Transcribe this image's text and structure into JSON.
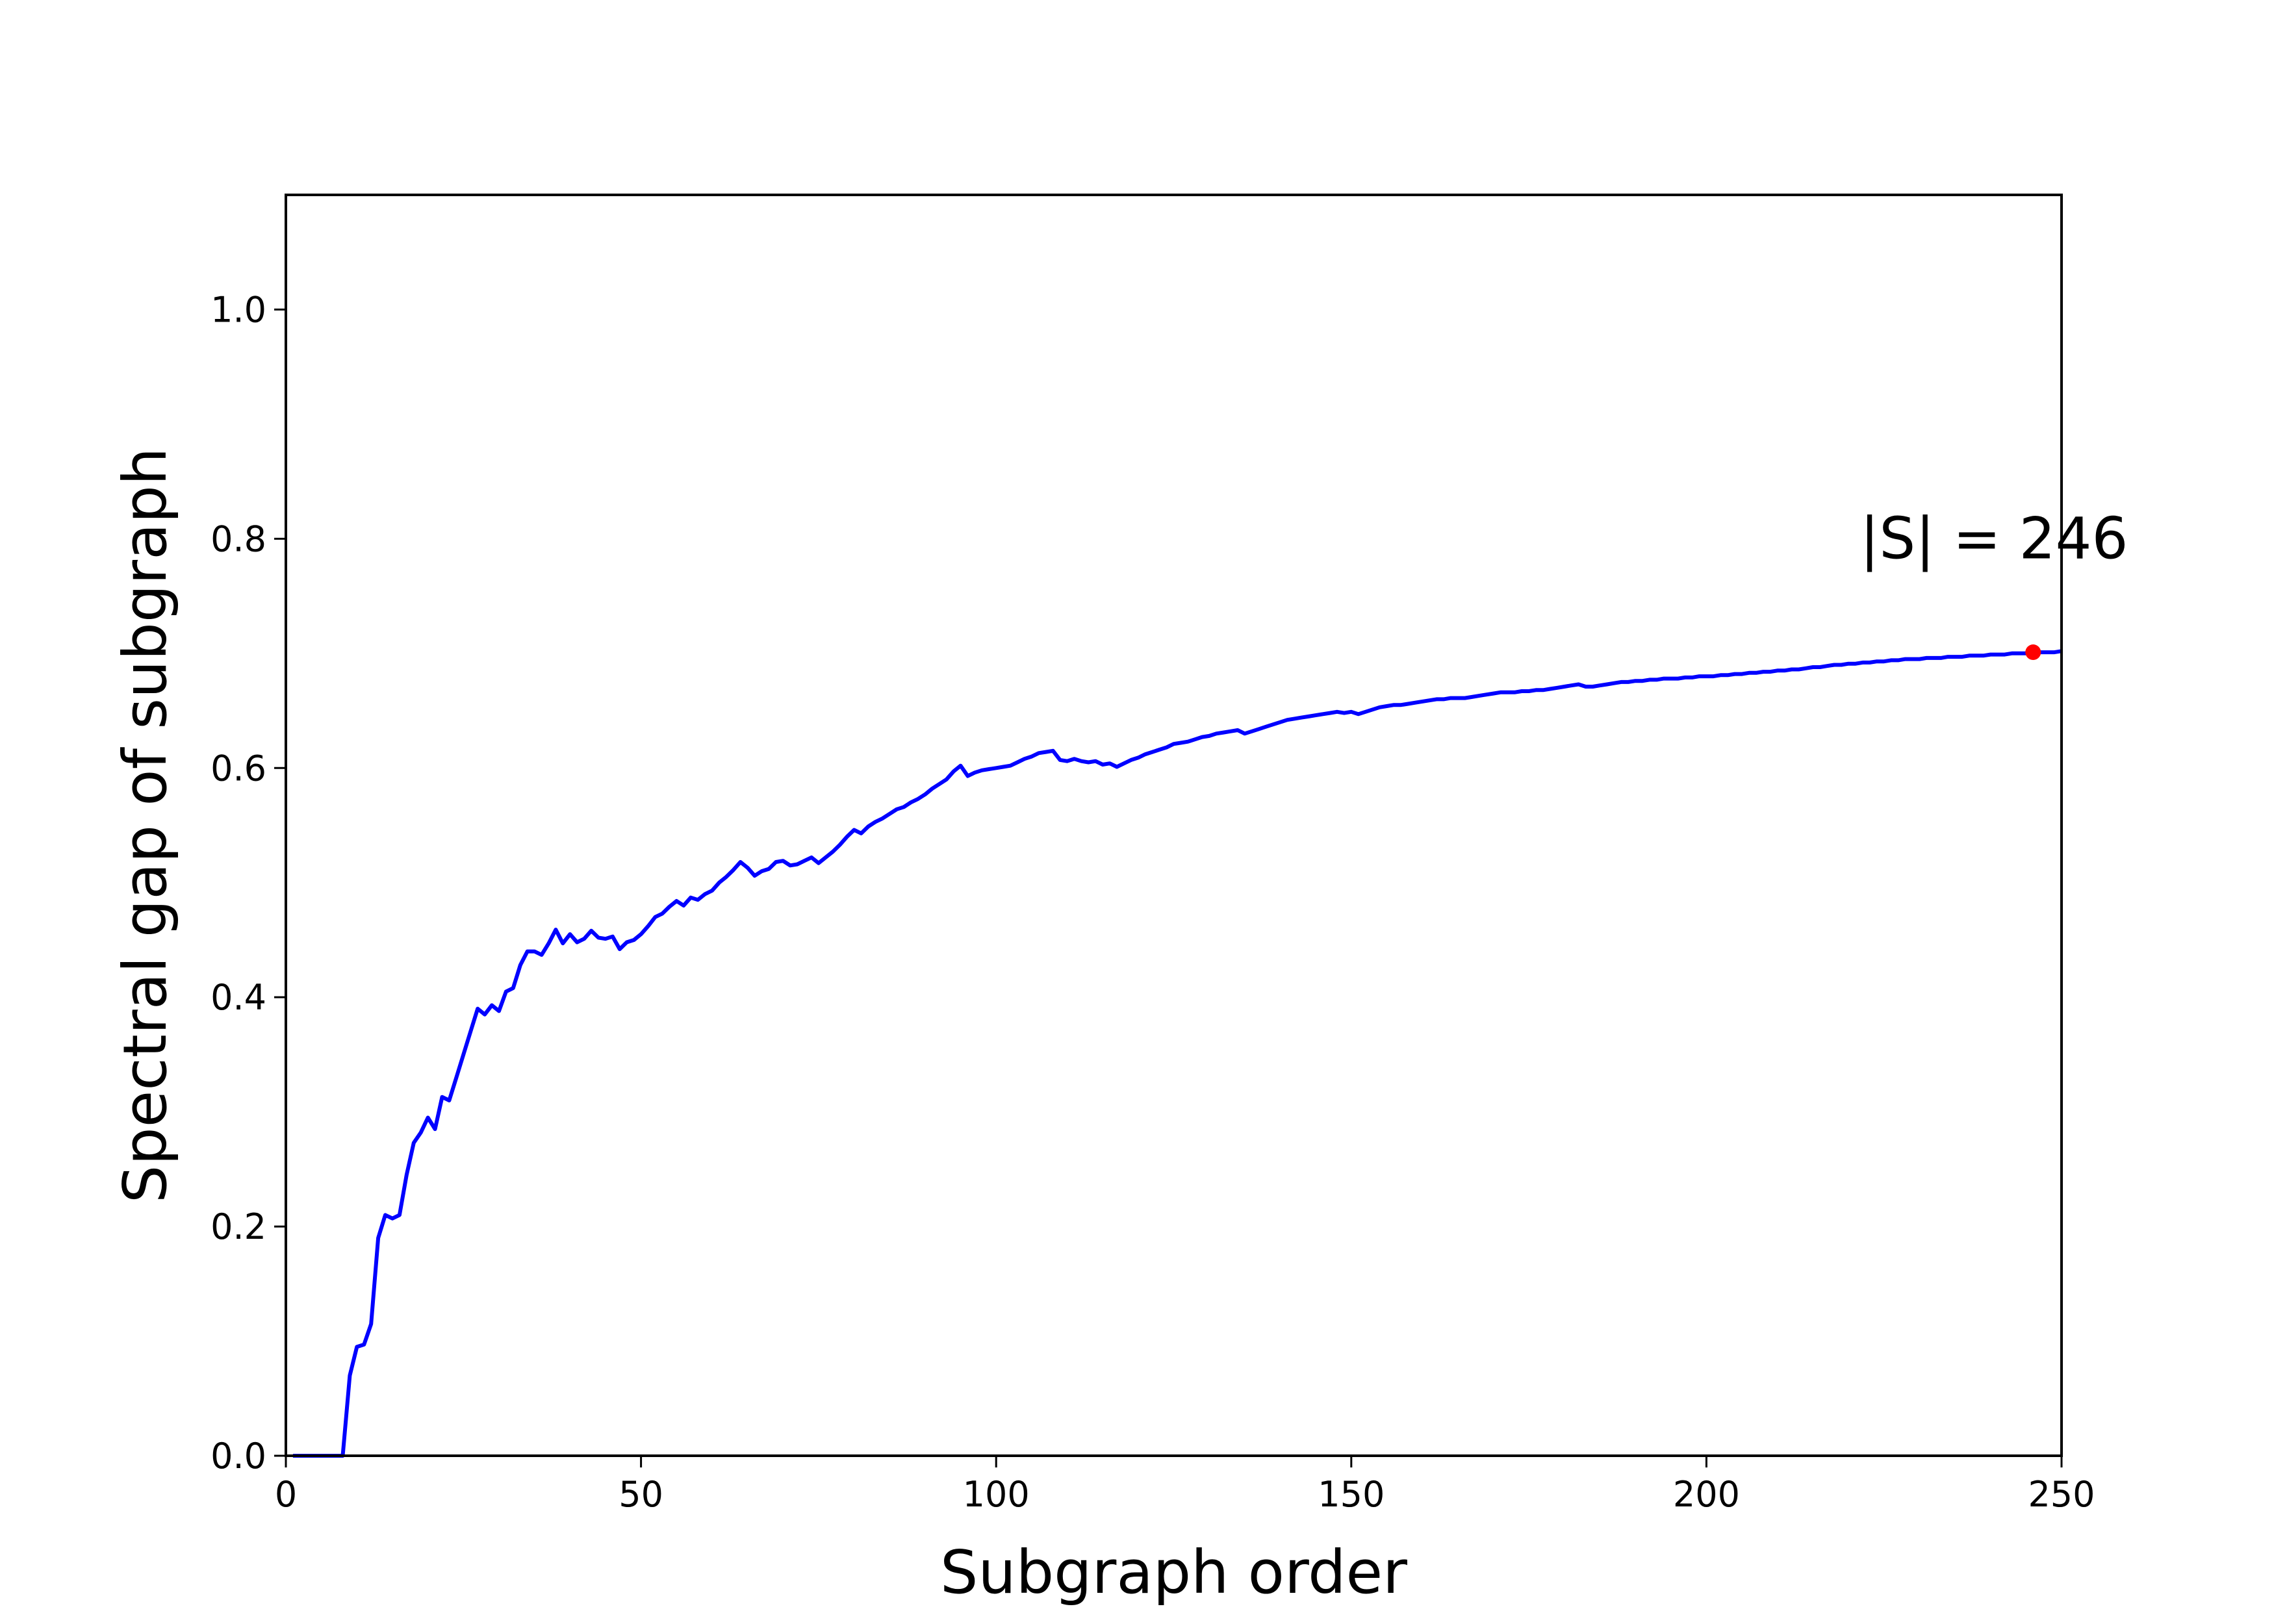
{
  "chart_data": {
    "type": "line",
    "title": "",
    "xlabel": "Subgraph order",
    "ylabel": "Spectral gap of subgraph",
    "xlim": [
      0,
      250
    ],
    "ylim": [
      0,
      1.1
    ],
    "xticks": [
      0,
      50,
      100,
      150,
      200,
      250
    ],
    "xtick_labels": [
      "0",
      "50",
      "100",
      "150",
      "200",
      "250"
    ],
    "yticks": [
      0.0,
      0.2,
      0.4,
      0.6,
      0.8,
      1.0
    ],
    "ytick_labels": [
      "0.0",
      "0.2",
      "0.4",
      "0.6",
      "0.8",
      "1.0"
    ],
    "grid": false,
    "series": [
      {
        "color": "#0000ff",
        "points": [
          [
            1,
            0.0
          ],
          [
            8,
            0.0
          ],
          [
            9,
            0.07
          ],
          [
            10,
            0.095
          ],
          [
            11,
            0.097
          ],
          [
            12,
            0.115
          ],
          [
            13,
            0.19
          ],
          [
            14,
            0.21
          ],
          [
            15,
            0.207
          ],
          [
            16,
            0.21
          ],
          [
            17,
            0.245
          ],
          [
            18,
            0.273
          ],
          [
            19,
            0.282
          ],
          [
            20,
            0.295
          ],
          [
            21,
            0.285
          ],
          [
            22,
            0.313
          ],
          [
            23,
            0.31
          ],
          [
            24,
            0.33
          ],
          [
            25,
            0.35
          ],
          [
            26,
            0.37
          ],
          [
            27,
            0.39
          ],
          [
            28,
            0.385
          ],
          [
            29,
            0.393
          ],
          [
            30,
            0.388
          ],
          [
            31,
            0.405
          ],
          [
            32,
            0.408
          ],
          [
            33,
            0.428
          ],
          [
            34,
            0.44
          ],
          [
            35,
            0.44
          ],
          [
            36,
            0.437
          ],
          [
            37,
            0.447
          ],
          [
            38,
            0.459
          ],
          [
            39,
            0.447
          ],
          [
            40,
            0.455
          ],
          [
            41,
            0.448
          ],
          [
            42,
            0.451
          ],
          [
            43,
            0.458
          ],
          [
            44,
            0.452
          ],
          [
            45,
            0.451
          ],
          [
            46,
            0.453
          ],
          [
            47,
            0.442
          ],
          [
            48,
            0.448
          ],
          [
            49,
            0.45
          ],
          [
            50,
            0.455
          ],
          [
            51,
            0.462
          ],
          [
            52,
            0.47
          ],
          [
            53,
            0.473
          ],
          [
            54,
            0.479
          ],
          [
            55,
            0.484
          ],
          [
            56,
            0.48
          ],
          [
            57,
            0.487
          ],
          [
            58,
            0.485
          ],
          [
            59,
            0.49
          ],
          [
            60,
            0.493
          ],
          [
            61,
            0.5
          ],
          [
            62,
            0.505
          ],
          [
            63,
            0.511
          ],
          [
            64,
            0.518
          ],
          [
            65,
            0.513
          ],
          [
            66,
            0.506
          ],
          [
            67,
            0.51
          ],
          [
            68,
            0.512
          ],
          [
            69,
            0.518
          ],
          [
            70,
            0.519
          ],
          [
            71,
            0.515
          ],
          [
            72,
            0.516
          ],
          [
            73,
            0.519
          ],
          [
            74,
            0.522
          ],
          [
            75,
            0.517
          ],
          [
            76,
            0.522
          ],
          [
            77,
            0.527
          ],
          [
            78,
            0.533
          ],
          [
            79,
            0.54
          ],
          [
            80,
            0.546
          ],
          [
            81,
            0.543
          ],
          [
            82,
            0.549
          ],
          [
            83,
            0.553
          ],
          [
            84,
            0.556
          ],
          [
            85,
            0.56
          ],
          [
            86,
            0.564
          ],
          [
            87,
            0.566
          ],
          [
            88,
            0.57
          ],
          [
            89,
            0.573
          ],
          [
            90,
            0.577
          ],
          [
            91,
            0.582
          ],
          [
            92,
            0.586
          ],
          [
            93,
            0.59
          ],
          [
            94,
            0.597
          ],
          [
            95,
            0.602
          ],
          [
            96,
            0.593
          ],
          [
            97,
            0.596
          ],
          [
            98,
            0.598
          ],
          [
            99,
            0.599
          ],
          [
            100,
            0.6
          ],
          [
            101,
            0.601
          ],
          [
            102,
            0.602
          ],
          [
            103,
            0.605
          ],
          [
            104,
            0.608
          ],
          [
            105,
            0.61
          ],
          [
            106,
            0.613
          ],
          [
            107,
            0.614
          ],
          [
            108,
            0.615
          ],
          [
            109,
            0.607
          ],
          [
            110,
            0.606
          ],
          [
            111,
            0.608
          ],
          [
            112,
            0.606
          ],
          [
            113,
            0.605
          ],
          [
            114,
            0.606
          ],
          [
            115,
            0.603
          ],
          [
            116,
            0.604
          ],
          [
            117,
            0.601
          ],
          [
            118,
            0.604
          ],
          [
            119,
            0.607
          ],
          [
            120,
            0.609
          ],
          [
            121,
            0.612
          ],
          [
            122,
            0.614
          ],
          [
            123,
            0.616
          ],
          [
            124,
            0.618
          ],
          [
            125,
            0.621
          ],
          [
            126,
            0.622
          ],
          [
            127,
            0.623
          ],
          [
            128,
            0.625
          ],
          [
            129,
            0.627
          ],
          [
            130,
            0.628
          ],
          [
            131,
            0.63
          ],
          [
            132,
            0.631
          ],
          [
            133,
            0.632
          ],
          [
            134,
            0.633
          ],
          [
            135,
            0.63
          ],
          [
            136,
            0.632
          ],
          [
            137,
            0.634
          ],
          [
            138,
            0.636
          ],
          [
            139,
            0.638
          ],
          [
            140,
            0.64
          ],
          [
            141,
            0.642
          ],
          [
            142,
            0.643
          ],
          [
            143,
            0.644
          ],
          [
            144,
            0.645
          ],
          [
            145,
            0.646
          ],
          [
            146,
            0.647
          ],
          [
            147,
            0.648
          ],
          [
            148,
            0.649
          ],
          [
            149,
            0.648
          ],
          [
            150,
            0.649
          ],
          [
            151,
            0.647
          ],
          [
            152,
            0.649
          ],
          [
            153,
            0.651
          ],
          [
            154,
            0.653
          ],
          [
            155,
            0.654
          ],
          [
            156,
            0.655
          ],
          [
            157,
            0.655
          ],
          [
            158,
            0.656
          ],
          [
            159,
            0.657
          ],
          [
            160,
            0.658
          ],
          [
            161,
            0.659
          ],
          [
            162,
            0.66
          ],
          [
            163,
            0.66
          ],
          [
            164,
            0.661
          ],
          [
            165,
            0.661
          ],
          [
            166,
            0.661
          ],
          [
            167,
            0.662
          ],
          [
            168,
            0.663
          ],
          [
            169,
            0.664
          ],
          [
            170,
            0.665
          ],
          [
            171,
            0.666
          ],
          [
            172,
            0.666
          ],
          [
            173,
            0.666
          ],
          [
            174,
            0.667
          ],
          [
            175,
            0.667
          ],
          [
            176,
            0.668
          ],
          [
            177,
            0.668
          ],
          [
            178,
            0.669
          ],
          [
            179,
            0.67
          ],
          [
            180,
            0.671
          ],
          [
            181,
            0.672
          ],
          [
            182,
            0.673
          ],
          [
            183,
            0.671
          ],
          [
            184,
            0.671
          ],
          [
            185,
            0.672
          ],
          [
            186,
            0.673
          ],
          [
            187,
            0.674
          ],
          [
            188,
            0.675
          ],
          [
            189,
            0.675
          ],
          [
            190,
            0.676
          ],
          [
            191,
            0.676
          ],
          [
            192,
            0.677
          ],
          [
            193,
            0.677
          ],
          [
            194,
            0.678
          ],
          [
            195,
            0.678
          ],
          [
            196,
            0.678
          ],
          [
            197,
            0.679
          ],
          [
            198,
            0.679
          ],
          [
            199,
            0.68
          ],
          [
            200,
            0.68
          ],
          [
            201,
            0.68
          ],
          [
            202,
            0.681
          ],
          [
            203,
            0.681
          ],
          [
            204,
            0.682
          ],
          [
            205,
            0.682
          ],
          [
            206,
            0.683
          ],
          [
            207,
            0.683
          ],
          [
            208,
            0.684
          ],
          [
            209,
            0.684
          ],
          [
            210,
            0.685
          ],
          [
            211,
            0.685
          ],
          [
            212,
            0.686
          ],
          [
            213,
            0.686
          ],
          [
            214,
            0.687
          ],
          [
            215,
            0.688
          ],
          [
            216,
            0.688
          ],
          [
            217,
            0.689
          ],
          [
            218,
            0.69
          ],
          [
            219,
            0.69
          ],
          [
            220,
            0.691
          ],
          [
            221,
            0.691
          ],
          [
            222,
            0.692
          ],
          [
            223,
            0.692
          ],
          [
            224,
            0.693
          ],
          [
            225,
            0.693
          ],
          [
            226,
            0.694
          ],
          [
            227,
            0.694
          ],
          [
            228,
            0.695
          ],
          [
            229,
            0.695
          ],
          [
            230,
            0.695
          ],
          [
            231,
            0.696
          ],
          [
            232,
            0.696
          ],
          [
            233,
            0.696
          ],
          [
            234,
            0.697
          ],
          [
            235,
            0.697
          ],
          [
            236,
            0.697
          ],
          [
            237,
            0.698
          ],
          [
            238,
            0.698
          ],
          [
            239,
            0.698
          ],
          [
            240,
            0.699
          ],
          [
            241,
            0.699
          ],
          [
            242,
            0.699
          ],
          [
            243,
            0.7
          ],
          [
            244,
            0.7
          ],
          [
            245,
            0.7
          ],
          [
            246,
            0.701
          ],
          [
            247,
            0.701
          ],
          [
            248,
            0.701
          ],
          [
            249,
            0.701
          ],
          [
            250,
            0.702
          ]
        ]
      }
    ],
    "marker": {
      "x": 246,
      "y": 0.701,
      "color": "#ff0000"
    },
    "annotation": {
      "text": "|S| = 246",
      "x": 240.5,
      "y": 0.8
    }
  }
}
